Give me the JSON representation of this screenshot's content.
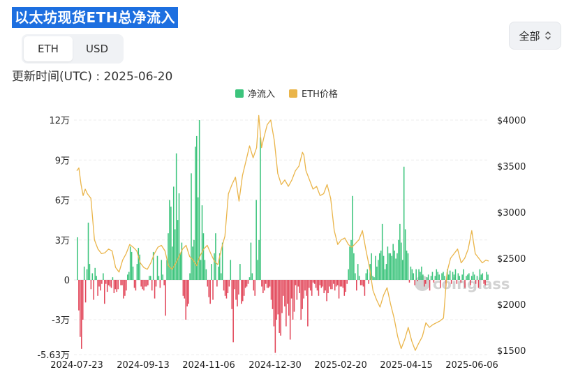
{
  "title": "以太坊现货ETH总净流入",
  "tabs": [
    {
      "label": "ETH",
      "active": true
    },
    {
      "label": "USD",
      "active": false
    }
  ],
  "range": {
    "selected": "全部",
    "icon": "chevron-updown-icon"
  },
  "updated_label": "更新时间(UTC) : 2025-06-20",
  "watermark": "coinglass",
  "colors": {
    "inflow": "#3cc47c",
    "outflow": "#e2475a",
    "price": "#eab54a"
  },
  "chart_data": {
    "type": "bar+line",
    "legend_position": "top-center",
    "grid": true,
    "y_left": {
      "ticks": [
        120000,
        90000,
        60000,
        30000,
        0,
        -30000,
        -56300
      ],
      "tick_labels": [
        "12万",
        "9万",
        "6万",
        "3万",
        "0",
        "-3万",
        "-5.63万"
      ],
      "range": [
        -56300,
        120000
      ]
    },
    "y_right": {
      "ticks": [
        4000,
        3500,
        3000,
        2500,
        2000,
        1500
      ],
      "tick_labels": [
        "$4000",
        "$3500",
        "$3000",
        "$2500",
        "$2000",
        "$1500"
      ],
      "range": [
        1480,
        4000
      ]
    },
    "x_tick_labels": [
      "2024-07-23",
      "2024-09-13",
      "2024-11-06",
      "2024-12-30",
      "2025-02-20",
      "2025-04-15",
      "2025-06-06"
    ],
    "series": [
      {
        "name": "净流入",
        "type": "bar",
        "values": [
          32000,
          -23000,
          -43000,
          -52000,
          -30000,
          10000,
          -17000,
          8000,
          43000,
          12000,
          -7000,
          5000,
          -15000,
          9000,
          3000,
          -12000,
          -5000,
          -8000,
          -3000,
          5000,
          -18000,
          -3000,
          -9000,
          -4000,
          -5000,
          -6000,
          2000,
          -10000,
          -7000,
          -9000,
          -7000,
          0,
          -4000,
          -4000,
          -14000,
          -12000,
          -8000,
          4000,
          6000,
          25000,
          21000,
          10000,
          -6000,
          -8000,
          12000,
          24000,
          19000,
          -5000,
          -7000,
          -8000,
          -5000,
          -5000,
          -4000,
          3000,
          3000,
          -8000,
          21000,
          -14000,
          -5000,
          18000,
          3000,
          -6000,
          15000,
          4000,
          -4000,
          -27000,
          15000,
          35000,
          60000,
          55000,
          25000,
          70000,
          38000,
          95000,
          45000,
          65000,
          20000,
          28000,
          -12000,
          -14000,
          -30000,
          -20000,
          -18000,
          5000,
          80000,
          25000,
          30000,
          100000,
          108000,
          62000,
          120000,
          15000,
          56000,
          35000,
          15000,
          8000,
          -5000,
          -13000,
          -18000,
          12000,
          -15000,
          20000,
          35000,
          -5000,
          10000,
          20000,
          5000,
          28000,
          -8000,
          -12000,
          -14000,
          -10000,
          -5000,
          15000,
          -22000,
          -47000,
          -7000,
          -15000,
          -20000,
          -11000,
          12000,
          -18000,
          -16000,
          -12000,
          -6000,
          -5000,
          -3000,
          2000,
          28000,
          5000,
          -8000,
          -12000,
          60000,
          15000,
          30000,
          107000,
          -5000,
          -10000,
          -8000,
          -3000,
          -6000,
          -6000,
          -5000,
          -15000,
          -22000,
          -35000,
          -55000,
          -30000,
          -26000,
          -40000,
          -42000,
          -25000,
          -12000,
          -20000,
          -35000,
          -18000,
          -27000,
          -45000,
          -14000,
          -30000,
          -24000,
          -4000,
          -15000,
          -5000,
          -10000,
          -30000,
          -22000,
          -14000,
          -8000,
          -12000,
          -35000,
          -6000,
          -8000,
          -12000,
          -2000,
          -3000,
          -6000,
          -8000,
          -12000,
          -4000,
          -6000,
          -5000,
          -10000,
          -8000,
          -16000,
          -10000,
          -5000,
          -7000,
          -7000,
          -3000,
          -8000,
          -5000,
          -4000,
          -14000,
          -5000,
          -5000,
          -6000,
          -12000,
          -9000,
          -3000,
          8000,
          25000,
          30000,
          63000,
          20000,
          5000,
          -8000,
          12000,
          3000,
          -4000,
          -4000,
          -5000,
          -12000,
          5000,
          8000,
          -3000,
          12000,
          20000,
          3000,
          2000,
          18000,
          10000,
          15000,
          20000,
          22000,
          42000,
          18000,
          8000,
          12000,
          25000,
          20000,
          20000,
          18000,
          27000,
          22000,
          16000,
          20000,
          30000,
          42000,
          28000,
          15000,
          85000,
          38000,
          22000,
          20000,
          -2000,
          10000,
          8000,
          5000,
          -4000,
          8000,
          -1000,
          8000,
          6000,
          10000,
          4000,
          -5000,
          -3000,
          2000,
          4000,
          -8000,
          3000,
          6000,
          -2000,
          3000,
          8000,
          6000,
          4000,
          -6000,
          5000,
          6000,
          3000,
          -5000,
          8000,
          4000,
          7000,
          -3000,
          6000,
          4000,
          8000,
          -3000,
          5000,
          3000,
          -2000,
          4000,
          8000,
          -6000,
          3000,
          4000,
          5000,
          -4000,
          3000,
          6000,
          4000,
          -3000,
          3000,
          -6000,
          8000,
          4000,
          5000,
          -3000,
          -4000,
          6000,
          4000
        ]
      },
      {
        "name": "ETH价格",
        "type": "line",
        "points": [
          [
            0,
            3450
          ],
          [
            3,
            3480
          ],
          [
            6,
            3300
          ],
          [
            9,
            3180
          ],
          [
            12,
            3250
          ],
          [
            15,
            3200
          ],
          [
            20,
            3150
          ],
          [
            25,
            2700
          ],
          [
            30,
            2600
          ],
          [
            35,
            2550
          ],
          [
            40,
            2560
          ],
          [
            45,
            2600
          ],
          [
            50,
            2580
          ],
          [
            55,
            2400
          ],
          [
            60,
            2350
          ],
          [
            65,
            2480
          ],
          [
            70,
            2550
          ],
          [
            75,
            2650
          ],
          [
            80,
            2620
          ],
          [
            85,
            2580
          ],
          [
            90,
            2450
          ],
          [
            95,
            2400
          ],
          [
            100,
            2380
          ],
          [
            105,
            2450
          ],
          [
            110,
            2550
          ],
          [
            115,
            2620
          ],
          [
            120,
            2640
          ],
          [
            125,
            2580
          ],
          [
            130,
            2420
          ],
          [
            135,
            2380
          ],
          [
            140,
            2440
          ],
          [
            145,
            2520
          ],
          [
            150,
            2600
          ],
          [
            155,
            2640
          ],
          [
            160,
            2520
          ],
          [
            165,
            2480
          ],
          [
            170,
            2420
          ],
          [
            175,
            2530
          ],
          [
            180,
            2600
          ],
          [
            185,
            2640
          ],
          [
            190,
            2550
          ],
          [
            195,
            2470
          ],
          [
            200,
            2430
          ],
          [
            205,
            2600
          ],
          [
            210,
            2740
          ],
          [
            215,
            3200
          ],
          [
            220,
            3300
          ],
          [
            225,
            3380
          ],
          [
            230,
            3120
          ],
          [
            235,
            3400
          ],
          [
            240,
            3560
          ],
          [
            245,
            3720
          ],
          [
            250,
            3590
          ],
          [
            255,
            3700
          ],
          [
            258,
            4050
          ],
          [
            262,
            3700
          ],
          [
            265,
            3800
          ],
          [
            270,
            3950
          ],
          [
            275,
            4000
          ],
          [
            280,
            3780
          ],
          [
            285,
            3420
          ],
          [
            290,
            3300
          ],
          [
            295,
            3350
          ],
          [
            300,
            3280
          ],
          [
            305,
            3350
          ],
          [
            310,
            3450
          ],
          [
            315,
            3500
          ],
          [
            320,
            3650
          ],
          [
            322,
            3620
          ],
          [
            325,
            3450
          ],
          [
            330,
            3350
          ],
          [
            335,
            3250
          ],
          [
            340,
            3280
          ],
          [
            345,
            3180
          ],
          [
            350,
            3200
          ],
          [
            355,
            3300
          ],
          [
            360,
            3150
          ],
          [
            365,
            2800
          ],
          [
            370,
            2650
          ],
          [
            375,
            2700
          ],
          [
            380,
            2720
          ],
          [
            385,
            2650
          ],
          [
            390,
            2620
          ],
          [
            395,
            2660
          ],
          [
            400,
            2700
          ],
          [
            405,
            2800
          ],
          [
            410,
            2590
          ],
          [
            415,
            2400
          ],
          [
            420,
            2150
          ],
          [
            425,
            2050
          ],
          [
            430,
            1970
          ],
          [
            435,
            2100
          ],
          [
            440,
            2180
          ],
          [
            445,
            2000
          ],
          [
            450,
            1850
          ],
          [
            455,
            1650
          ],
          [
            460,
            1520
          ],
          [
            465,
            1620
          ],
          [
            470,
            1750
          ],
          [
            475,
            1600
          ],
          [
            480,
            1500
          ],
          [
            485,
            1580
          ],
          [
            490,
            1650
          ],
          [
            495,
            1800
          ],
          [
            500,
            1750
          ],
          [
            505,
            1780
          ],
          [
            510,
            1800
          ],
          [
            515,
            1820
          ],
          [
            520,
            1850
          ],
          [
            525,
            2350
          ],
          [
            530,
            2500
          ],
          [
            535,
            2550
          ],
          [
            540,
            2600
          ],
          [
            545,
            2450
          ],
          [
            550,
            2500
          ],
          [
            555,
            2600
          ],
          [
            560,
            2800
          ],
          [
            565,
            2550
          ],
          [
            570,
            2500
          ],
          [
            575,
            2450
          ],
          [
            580,
            2480
          ],
          [
            584,
            2470
          ]
        ]
      }
    ]
  }
}
